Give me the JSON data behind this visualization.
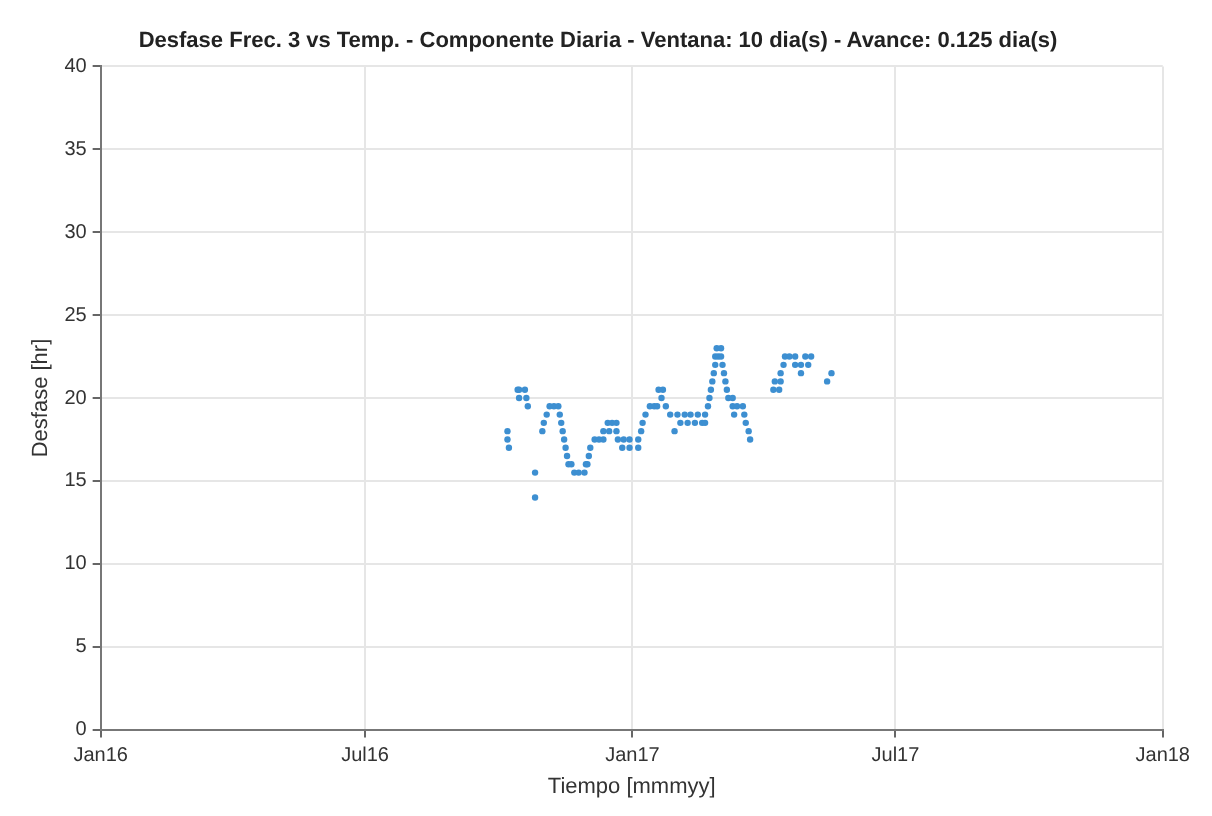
{
  "chart_data": {
    "type": "scatter",
    "title": "Desfase Frec. 3 vs Temp. - Componente Diaria - Ventana: 10 dia(s) - Avance: 0.125 dia(s)",
    "xlabel": "Tiempo [mmmyy]",
    "ylabel": "Desfase [hr]",
    "xlim": [
      "2016-01-01",
      "2018-01-01"
    ],
    "xticks": [
      {
        "value": "2016-01-01",
        "label": "Jan16"
      },
      {
        "value": "2016-07-01",
        "label": "Jul16"
      },
      {
        "value": "2017-01-01",
        "label": "Jan17"
      },
      {
        "value": "2017-07-01",
        "label": "Jul17"
      },
      {
        "value": "2018-01-01",
        "label": "Jan18"
      }
    ],
    "ylim": [
      0,
      40
    ],
    "yticks": [
      0,
      5,
      10,
      15,
      20,
      25,
      30,
      35,
      40
    ],
    "grid": true,
    "legend": false,
    "marker": "circle",
    "series": [
      {
        "color": "#3d8fd1",
        "x": [
          "2016-10-07",
          "2016-10-07",
          "2016-10-08",
          "2016-10-14",
          "2016-10-15",
          "2016-10-15",
          "2016-10-19",
          "2016-10-20",
          "2016-10-21",
          "2016-10-26",
          "2016-10-26",
          "2016-10-31",
          "2016-11-01",
          "2016-11-03",
          "2016-11-05",
          "2016-11-08",
          "2016-11-11",
          "2016-11-12",
          "2016-11-13",
          "2016-11-14",
          "2016-11-15",
          "2016-11-16",
          "2016-11-17",
          "2016-11-18",
          "2016-11-20",
          "2016-11-22",
          "2016-11-25",
          "2016-11-29",
          "2016-11-30",
          "2016-12-01",
          "2016-12-02",
          "2016-12-03",
          "2016-12-06",
          "2016-12-09",
          "2016-12-12",
          "2016-12-12",
          "2016-12-16",
          "2016-12-21",
          "2016-12-15",
          "2016-12-18",
          "2016-12-21",
          "2016-12-22",
          "2016-12-26",
          "2016-12-30",
          "2017-01-05",
          "2016-12-25",
          "2016-12-30",
          "2017-01-05",
          "2017-01-07",
          "2017-01-08",
          "2017-01-10",
          "2017-01-13",
          "2017-01-16",
          "2017-01-18",
          "2017-01-19",
          "2017-01-22",
          "2017-01-21",
          "2017-01-24",
          "2017-01-27",
          "2017-01-30",
          "2017-02-01",
          "2017-02-06",
          "2017-02-10",
          "2017-02-15",
          "2017-02-20",
          "2017-02-03",
          "2017-02-08",
          "2017-02-13",
          "2017-02-18",
          "2017-02-20",
          "2017-02-22",
          "2017-02-23",
          "2017-02-24",
          "2017-02-25",
          "2017-02-26",
          "2017-02-27",
          "2017-02-27",
          "2017-03-01",
          "2017-03-03",
          "2017-02-28",
          "2017-03-03",
          "2017-03-04",
          "2017-03-05",
          "2017-03-06",
          "2017-03-07",
          "2017-03-08",
          "2017-03-11",
          "2017-03-11",
          "2017-03-14",
          "2017-03-18",
          "2017-03-12",
          "2017-03-19",
          "2017-03-20",
          "2017-03-22",
          "2017-03-23",
          "2017-04-08",
          "2017-04-12",
          "2017-04-09",
          "2017-04-13",
          "2017-04-13",
          "2017-04-15",
          "2017-04-16",
          "2017-04-19",
          "2017-04-23",
          "2017-04-23",
          "2017-04-27",
          "2017-05-02",
          "2017-04-27",
          "2017-04-30",
          "2017-05-04",
          "2017-05-15",
          "2017-05-18"
        ],
        "values": [
          18,
          17.5,
          17,
          20.5,
          20.5,
          20,
          20.5,
          20,
          19.5,
          15.5,
          14,
          18,
          18.5,
          19,
          19.5,
          19.5,
          19.5,
          19,
          18.5,
          18,
          17.5,
          17,
          16.5,
          16,
          16,
          15.5,
          15.5,
          15.5,
          16,
          16,
          16.5,
          17,
          17.5,
          17.5,
          17.5,
          18,
          18,
          18,
          18.5,
          18.5,
          18.5,
          17.5,
          17.5,
          17.5,
          17.5,
          17,
          17,
          17,
          18,
          18.5,
          19,
          19.5,
          19.5,
          19.5,
          20.5,
          20.5,
          20,
          19.5,
          19,
          18,
          19,
          19,
          19,
          19,
          19,
          18.5,
          18.5,
          18.5,
          18.5,
          18.5,
          19.5,
          20,
          20.5,
          21,
          21.5,
          22,
          22.5,
          22.5,
          22.5,
          23,
          23,
          22,
          21.5,
          21,
          20.5,
          20,
          20,
          19.5,
          19.5,
          19.5,
          19,
          19,
          18.5,
          18,
          17.5,
          20.5,
          20.5,
          21,
          21,
          21.5,
          22,
          22.5,
          22.5,
          22.5,
          22,
          22,
          22,
          21.5,
          22.5,
          22.5,
          21,
          21.5
        ]
      }
    ]
  }
}
